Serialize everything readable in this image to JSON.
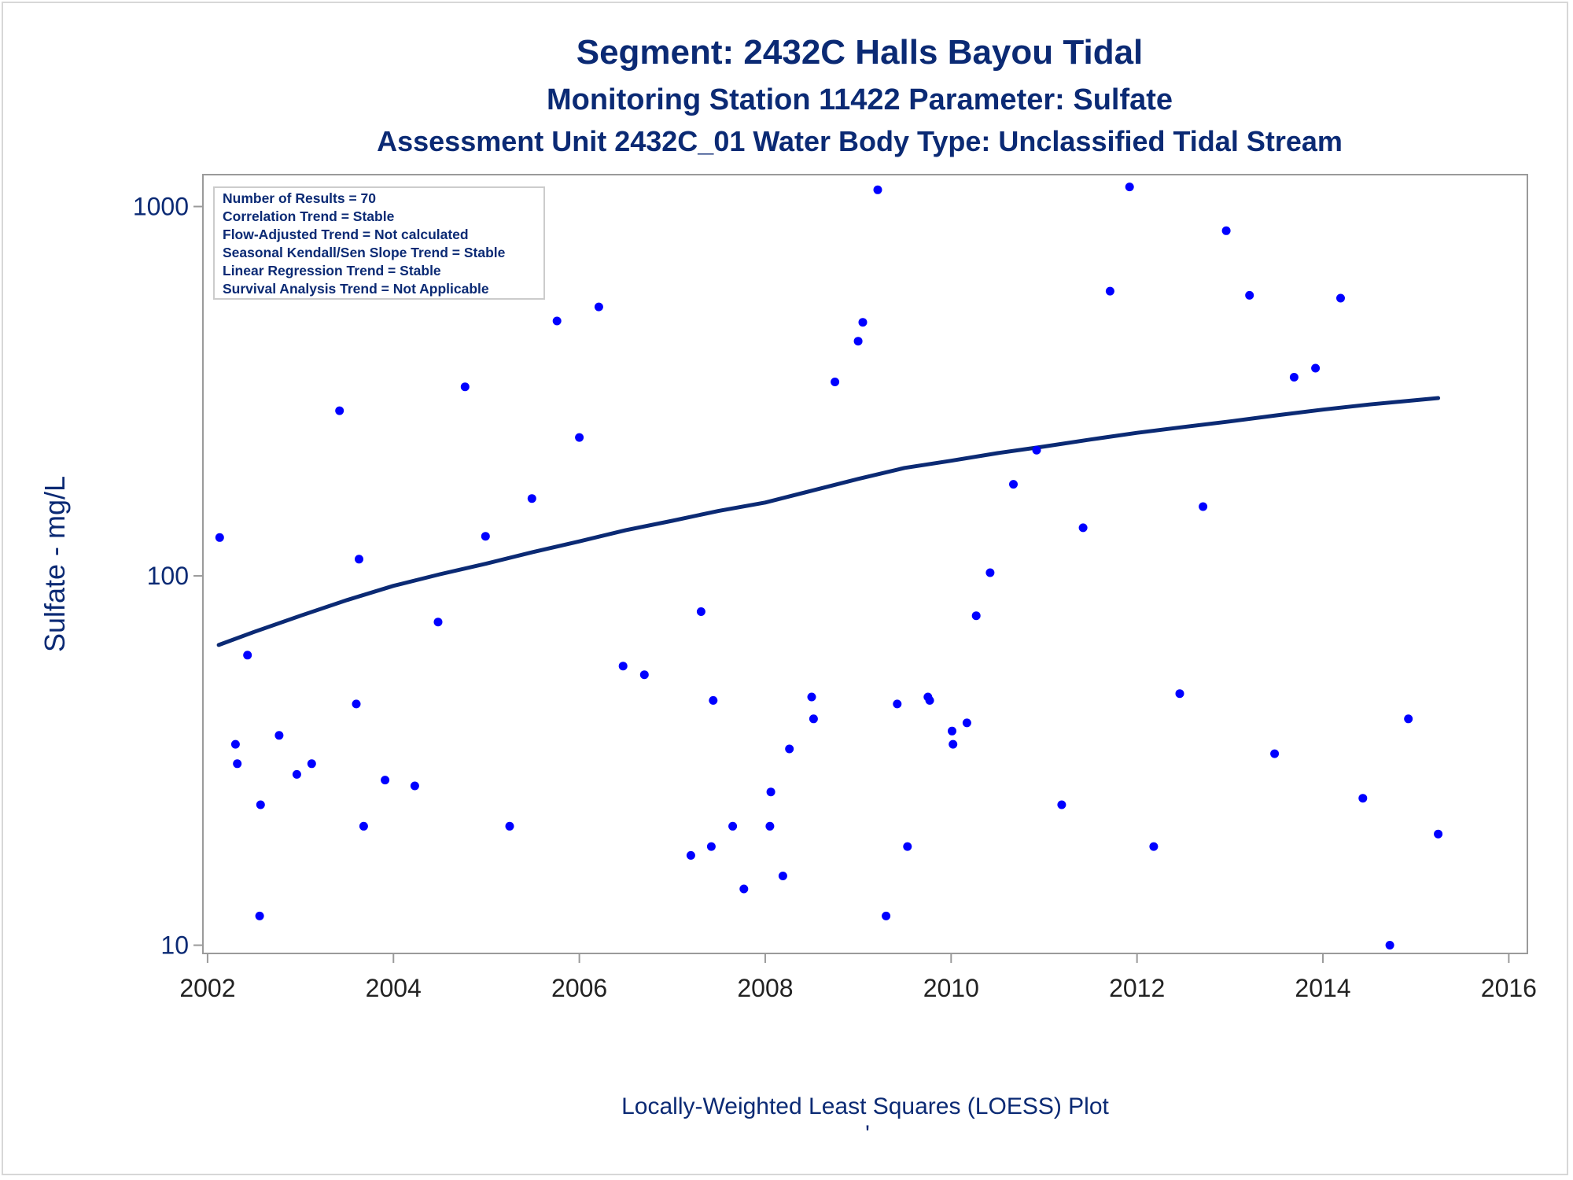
{
  "titles": {
    "line1": "Segment: 2432C  Halls Bayou Tidal",
    "line2": "Monitoring Station 11422 Parameter: Sulfate",
    "line3": "Assessment Unit 2432C_01   Water Body Type: Unclassified Tidal Stream"
  },
  "stats_box": [
    "Number of Results = 70",
    "Correlation Trend = Stable",
    "Flow-Adjusted Trend = Not calculated",
    "Seasonal Kendall/Sen Slope Trend = Stable",
    "Linear Regression Trend = Stable",
    "Survival Analysis Trend = Not Applicable"
  ],
  "footnote": "Locally-Weighted Least Squares (LOESS) Plot",
  "footnote_mark": "'",
  "colors": {
    "title": "#0b2a74",
    "points": "#0000ff",
    "loess_line": "#0b2a74",
    "axis": "#9a9a9a"
  },
  "chart_data": {
    "type": "scatter",
    "xlabel": "",
    "ylabel": "Sulfate - mg/L",
    "y_scale": "log",
    "xlim": [
      2001.95,
      2016.2
    ],
    "ylim": [
      9.5,
      1220
    ],
    "x_ticks": [
      2002,
      2004,
      2006,
      2008,
      2010,
      2012,
      2014,
      2016
    ],
    "y_ticks": [
      10,
      100,
      1000
    ],
    "legend_position": "top-left",
    "grid": false,
    "series": [
      {
        "type": "scatter",
        "points": [
          [
            2002.13,
            127
          ],
          [
            2002.3,
            35
          ],
          [
            2002.32,
            31
          ],
          [
            2002.43,
            61
          ],
          [
            2002.56,
            12
          ],
          [
            2002.57,
            24
          ],
          [
            2002.77,
            37
          ],
          [
            2002.96,
            29
          ],
          [
            2003.12,
            31
          ],
          [
            2003.42,
            280
          ],
          [
            2003.6,
            45
          ],
          [
            2003.63,
            111
          ],
          [
            2003.68,
            21
          ],
          [
            2003.91,
            28
          ],
          [
            2004.23,
            27
          ],
          [
            2004.48,
            75
          ],
          [
            2004.77,
            325
          ],
          [
            2004.99,
            128
          ],
          [
            2005.25,
            21
          ],
          [
            2005.49,
            162
          ],
          [
            2005.76,
            490
          ],
          [
            2006.0,
            237
          ],
          [
            2006.21,
            535
          ],
          [
            2006.47,
            57
          ],
          [
            2006.7,
            54
          ],
          [
            2007.2,
            17.5
          ],
          [
            2007.31,
            80
          ],
          [
            2007.42,
            18.5
          ],
          [
            2007.44,
            46
          ],
          [
            2007.65,
            21
          ],
          [
            2007.77,
            14.2
          ],
          [
            2008.05,
            21
          ],
          [
            2008.06,
            26
          ],
          [
            2008.19,
            15.4
          ],
          [
            2008.26,
            34
          ],
          [
            2008.5,
            47
          ],
          [
            2008.52,
            41
          ],
          [
            2008.75,
            335
          ],
          [
            2009.0,
            432
          ],
          [
            2009.05,
            486
          ],
          [
            2009.21,
            1110
          ],
          [
            2009.3,
            12
          ],
          [
            2009.42,
            45
          ],
          [
            2009.53,
            18.5
          ],
          [
            2009.75,
            47
          ],
          [
            2009.77,
            46
          ],
          [
            2010.01,
            38
          ],
          [
            2010.02,
            35
          ],
          [
            2010.17,
            40
          ],
          [
            2010.27,
            78
          ],
          [
            2010.42,
            102
          ],
          [
            2010.67,
            177
          ],
          [
            2010.92,
            219
          ],
          [
            2011.19,
            24
          ],
          [
            2011.42,
            135
          ],
          [
            2011.71,
            590
          ],
          [
            2011.92,
            1130
          ],
          [
            2012.18,
            18.5
          ],
          [
            2012.46,
            48
          ],
          [
            2012.71,
            154
          ],
          [
            2012.96,
            860
          ],
          [
            2013.21,
            575
          ],
          [
            2013.48,
            33
          ],
          [
            2013.69,
            345
          ],
          [
            2013.92,
            365
          ],
          [
            2014.19,
            565
          ],
          [
            2014.43,
            25
          ],
          [
            2014.72,
            10
          ],
          [
            2014.92,
            41
          ],
          [
            2015.24,
            20
          ]
        ]
      },
      {
        "type": "line",
        "points": [
          [
            2002.12,
            65
          ],
          [
            2002.5,
            70.5
          ],
          [
            2003.0,
            78
          ],
          [
            2003.5,
            86
          ],
          [
            2004.0,
            94
          ],
          [
            2004.5,
            101
          ],
          [
            2005.0,
            108
          ],
          [
            2005.5,
            116
          ],
          [
            2006.0,
            124
          ],
          [
            2006.5,
            133
          ],
          [
            2007.0,
            141
          ],
          [
            2007.5,
            150
          ],
          [
            2008.0,
            158
          ],
          [
            2008.5,
            170
          ],
          [
            2009.0,
            183
          ],
          [
            2009.5,
            196
          ],
          [
            2010.0,
            205
          ],
          [
            2010.5,
            215
          ],
          [
            2011.0,
            224
          ],
          [
            2011.5,
            234
          ],
          [
            2012.0,
            244
          ],
          [
            2012.5,
            253
          ],
          [
            2013.0,
            262
          ],
          [
            2013.5,
            272
          ],
          [
            2014.0,
            282
          ],
          [
            2014.5,
            291
          ],
          [
            2015.24,
            303
          ]
        ]
      }
    ]
  }
}
